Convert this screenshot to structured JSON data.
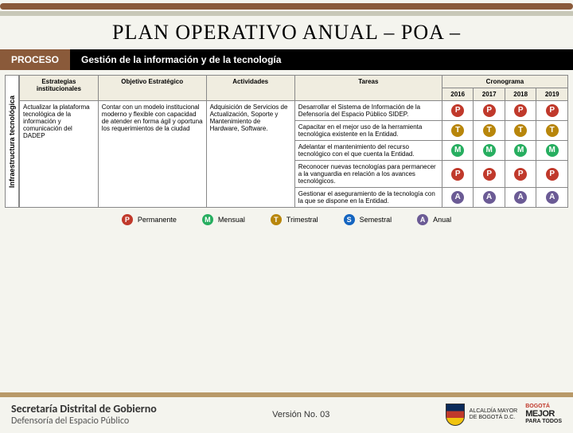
{
  "title": "PLAN OPERATIVO ANUAL – POA –",
  "proceso_label": "PROCESO",
  "proceso_desc": "Gestión de la información y de la tecnología",
  "vertical_label": "Infraestructura tecnológica",
  "headers": {
    "estrategias": "Estrategias institucionales",
    "objetivo": "Objetivo Estratégico",
    "actividades": "Actividades",
    "tareas": "Tareas",
    "cronograma": "Cronograma",
    "years": [
      "2016",
      "2017",
      "2018",
      "2019"
    ]
  },
  "estrategia": "Actualizar la plataforma tecnológica de la información y comunicación del DADEP",
  "objetivo": "Contar con un modelo institucional moderno y flexible con capacidad de atender en forma ágil y oportuna los requerimientos de la ciudad",
  "actividad": "Adquisición de Servicios de Actualización, Soporte y Mantenimiento de Hardware, Software.",
  "tareas": [
    {
      "text": "Desarrollar el Sistema de Información de la Defensoría del Espacio Público SIDEP.",
      "badge": "P",
      "color": "#c0392b"
    },
    {
      "text": "Capacitar en el mejor uso de la herramienta tecnológica existente en la Entidad.",
      "badge": "T",
      "color": "#b8860b"
    },
    {
      "text": "Adelantar el mantenimiento del recurso tecnológico con el que cuenta la Entidad.",
      "badge": "M",
      "color": "#27ae60"
    },
    {
      "text": "Reconocer nuevas tecnologías para permanecer a la vanguardia en relación a los avances tecnológicos.",
      "badge": "P",
      "color": "#c0392b"
    },
    {
      "text": "Gestionar el aseguramiento de la tecnología con la que se dispone en la Entidad.",
      "badge": "A",
      "color": "#6b5b95"
    }
  ],
  "legend": [
    {
      "k": "P",
      "label": "Permanente",
      "color": "#c0392b"
    },
    {
      "k": "M",
      "label": "Mensual",
      "color": "#27ae60"
    },
    {
      "k": "T",
      "label": "Trimestral",
      "color": "#b8860b"
    },
    {
      "k": "S",
      "label": "Semestral",
      "color": "#1565c0"
    },
    {
      "k": "A",
      "label": "Anual",
      "color": "#6b5b95"
    }
  ],
  "footer": {
    "line1": "Secretaría Distrital de Gobierno",
    "line2": "Defensoría del Espacio Público",
    "version": "Versión No. 03",
    "logo1": "ALCALDÍA MAYOR",
    "logo2": "DE BOGOTÁ D.C.",
    "slogan_top": "BOGOTÁ",
    "slogan_mid": "MEJOR",
    "slogan_bot": "PARA TODOS"
  }
}
